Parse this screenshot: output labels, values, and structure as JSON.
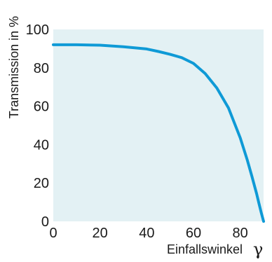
{
  "chart_data": {
    "type": "line",
    "title": "",
    "ylabel": "Transmission in %",
    "xlabel": "Einfallswinkel",
    "xsymbol": "γ",
    "xlim": [
      0,
      90
    ],
    "ylim": [
      0,
      100
    ],
    "x_ticks": [
      "0",
      "20",
      "40",
      "60",
      "80"
    ],
    "y_ticks": [
      "0",
      "20",
      "40",
      "60",
      "80",
      "100"
    ],
    "grid": false,
    "colors": {
      "plot_background": "#e3f1f4",
      "line": "#0f9ad6",
      "axis": "#1a1a1a"
    },
    "series": [
      {
        "x": [
          0,
          10,
          20,
          30,
          40,
          45,
          50,
          55,
          60,
          65,
          70,
          75,
          80,
          83,
          85,
          87,
          88,
          89,
          90
        ],
        "y": [
          92,
          92,
          91.8,
          91,
          89.8,
          88.5,
          87,
          85.3,
          82.3,
          77,
          69.5,
          59,
          43.5,
          32,
          23.5,
          14.5,
          9.5,
          4.5,
          0
        ]
      }
    ]
  }
}
